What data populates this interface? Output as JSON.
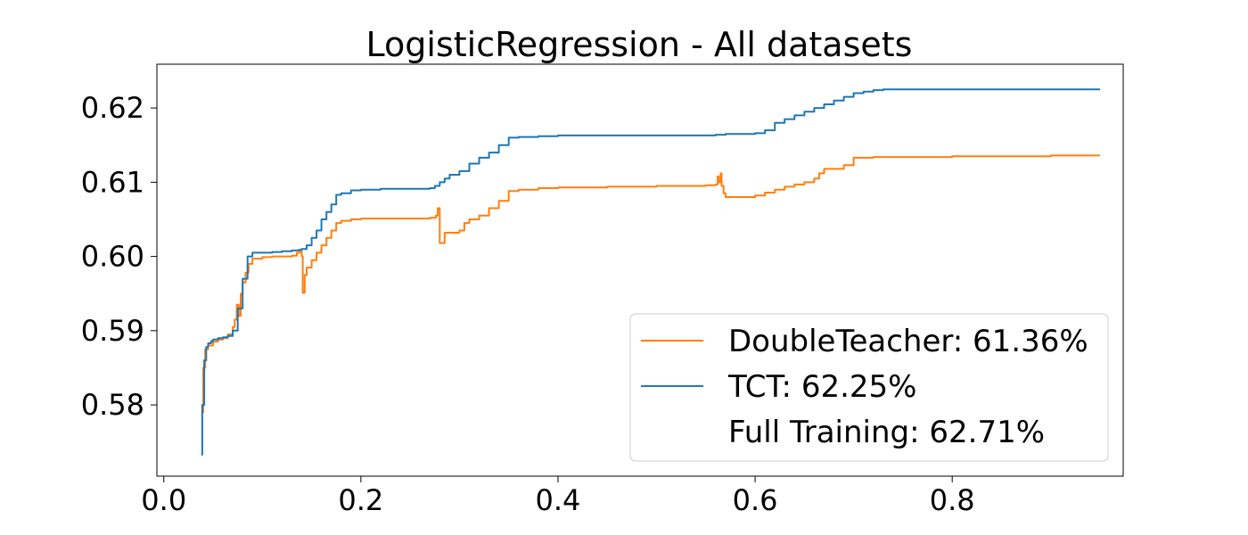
{
  "chart_data": {
    "type": "line",
    "title": "LogisticRegression - All datasets",
    "xlabel": "",
    "ylabel": "",
    "xlim": [
      -0.007,
      0.9735
    ],
    "ylim": [
      0.5704,
      0.6259
    ],
    "xticks": [
      0.0,
      0.2,
      0.4,
      0.6,
      0.8
    ],
    "xtick_labels": [
      "0.0",
      "0.2",
      "0.4",
      "0.6",
      "0.8"
    ],
    "yticks": [
      0.58,
      0.59,
      0.6,
      0.61,
      0.62
    ],
    "ytick_labels": [
      "0.58",
      "0.59",
      "0.60",
      "0.61",
      "0.62"
    ],
    "grid": false,
    "legend_position": "lower-right",
    "series": [
      {
        "name": "DoubleTeacher: 61.36%",
        "legend": "DoubleTeacher: 61.36%",
        "color": "#ff7f0e",
        "x": [
          0.038,
          0.04,
          0.042,
          0.045,
          0.05,
          0.055,
          0.06,
          0.065,
          0.07,
          0.072,
          0.074,
          0.076,
          0.078,
          0.08,
          0.083,
          0.086,
          0.09,
          0.1,
          0.11,
          0.12,
          0.13,
          0.135,
          0.138,
          0.14,
          0.141,
          0.143,
          0.145,
          0.15,
          0.155,
          0.16,
          0.165,
          0.17,
          0.175,
          0.18,
          0.19,
          0.2,
          0.22,
          0.25,
          0.27,
          0.276,
          0.278,
          0.28,
          0.285,
          0.29,
          0.3,
          0.305,
          0.31,
          0.32,
          0.33,
          0.34,
          0.35,
          0.36,
          0.38,
          0.4,
          0.45,
          0.5,
          0.55,
          0.56,
          0.562,
          0.563,
          0.565,
          0.566,
          0.568,
          0.57,
          0.58,
          0.6,
          0.61,
          0.62,
          0.63,
          0.64,
          0.65,
          0.66,
          0.665,
          0.67,
          0.69,
          0.7,
          0.72,
          0.8,
          0.9,
          0.95
        ],
        "y": [
          0.579,
          0.585,
          0.5875,
          0.588,
          0.5885,
          0.5888,
          0.589,
          0.5895,
          0.5905,
          0.5915,
          0.5935,
          0.592,
          0.595,
          0.5965,
          0.5978,
          0.599,
          0.5997,
          0.5999,
          0.6,
          0.6,
          0.6001,
          0.6005,
          0.6007,
          0.6,
          0.5951,
          0.5975,
          0.5985,
          0.5995,
          0.6005,
          0.6015,
          0.6025,
          0.6035,
          0.6045,
          0.6048,
          0.605,
          0.6051,
          0.6051,
          0.6051,
          0.6052,
          0.6055,
          0.6065,
          0.6018,
          0.6032,
          0.6032,
          0.6035,
          0.6045,
          0.605,
          0.6055,
          0.6065,
          0.6075,
          0.6088,
          0.609,
          0.6092,
          0.6093,
          0.6094,
          0.6095,
          0.6096,
          0.6097,
          0.6108,
          0.61,
          0.6112,
          0.6095,
          0.6085,
          0.608,
          0.608,
          0.6082,
          0.6086,
          0.609,
          0.6094,
          0.6097,
          0.61,
          0.6105,
          0.6112,
          0.6118,
          0.6123,
          0.6133,
          0.6134,
          0.6135,
          0.6136,
          0.6136
        ]
      },
      {
        "name": "TCT: 62.25%",
        "legend": "TCT: 62.25%",
        "color": "#1f77b4",
        "x": [
          0.038,
          0.039,
          0.041,
          0.043,
          0.045,
          0.048,
          0.05,
          0.055,
          0.06,
          0.065,
          0.07,
          0.075,
          0.08,
          0.085,
          0.09,
          0.1,
          0.11,
          0.12,
          0.13,
          0.137,
          0.14,
          0.145,
          0.15,
          0.155,
          0.16,
          0.165,
          0.17,
          0.175,
          0.18,
          0.19,
          0.2,
          0.22,
          0.25,
          0.27,
          0.275,
          0.28,
          0.285,
          0.29,
          0.3,
          0.31,
          0.32,
          0.33,
          0.34,
          0.35,
          0.36,
          0.38,
          0.4,
          0.45,
          0.5,
          0.54,
          0.56,
          0.57,
          0.6,
          0.61,
          0.62,
          0.63,
          0.64,
          0.65,
          0.66,
          0.67,
          0.68,
          0.69,
          0.7,
          0.71,
          0.72,
          0.73,
          0.8,
          0.9,
          0.95
        ],
        "y": [
          0.5733,
          0.58,
          0.586,
          0.5878,
          0.5883,
          0.5886,
          0.5888,
          0.589,
          0.5891,
          0.5893,
          0.59,
          0.593,
          0.597,
          0.6,
          0.6005,
          0.6005,
          0.6006,
          0.6007,
          0.6008,
          0.6009,
          0.601,
          0.6015,
          0.6025,
          0.6035,
          0.605,
          0.606,
          0.607,
          0.6083,
          0.6085,
          0.6089,
          0.609,
          0.6091,
          0.6091,
          0.6092,
          0.6095,
          0.61,
          0.6105,
          0.611,
          0.6115,
          0.6125,
          0.6133,
          0.614,
          0.615,
          0.616,
          0.6161,
          0.6162,
          0.6163,
          0.6163,
          0.6163,
          0.6163,
          0.6164,
          0.6165,
          0.6166,
          0.617,
          0.618,
          0.6185,
          0.619,
          0.6195,
          0.62,
          0.6205,
          0.621,
          0.6215,
          0.622,
          0.6222,
          0.6224,
          0.6225,
          0.6225,
          0.6225,
          0.6225
        ]
      },
      {
        "name": "Full Training: 62.71%",
        "legend": "Full Training: 62.71%",
        "color": "#ffffff",
        "x": [],
        "y": []
      }
    ]
  }
}
